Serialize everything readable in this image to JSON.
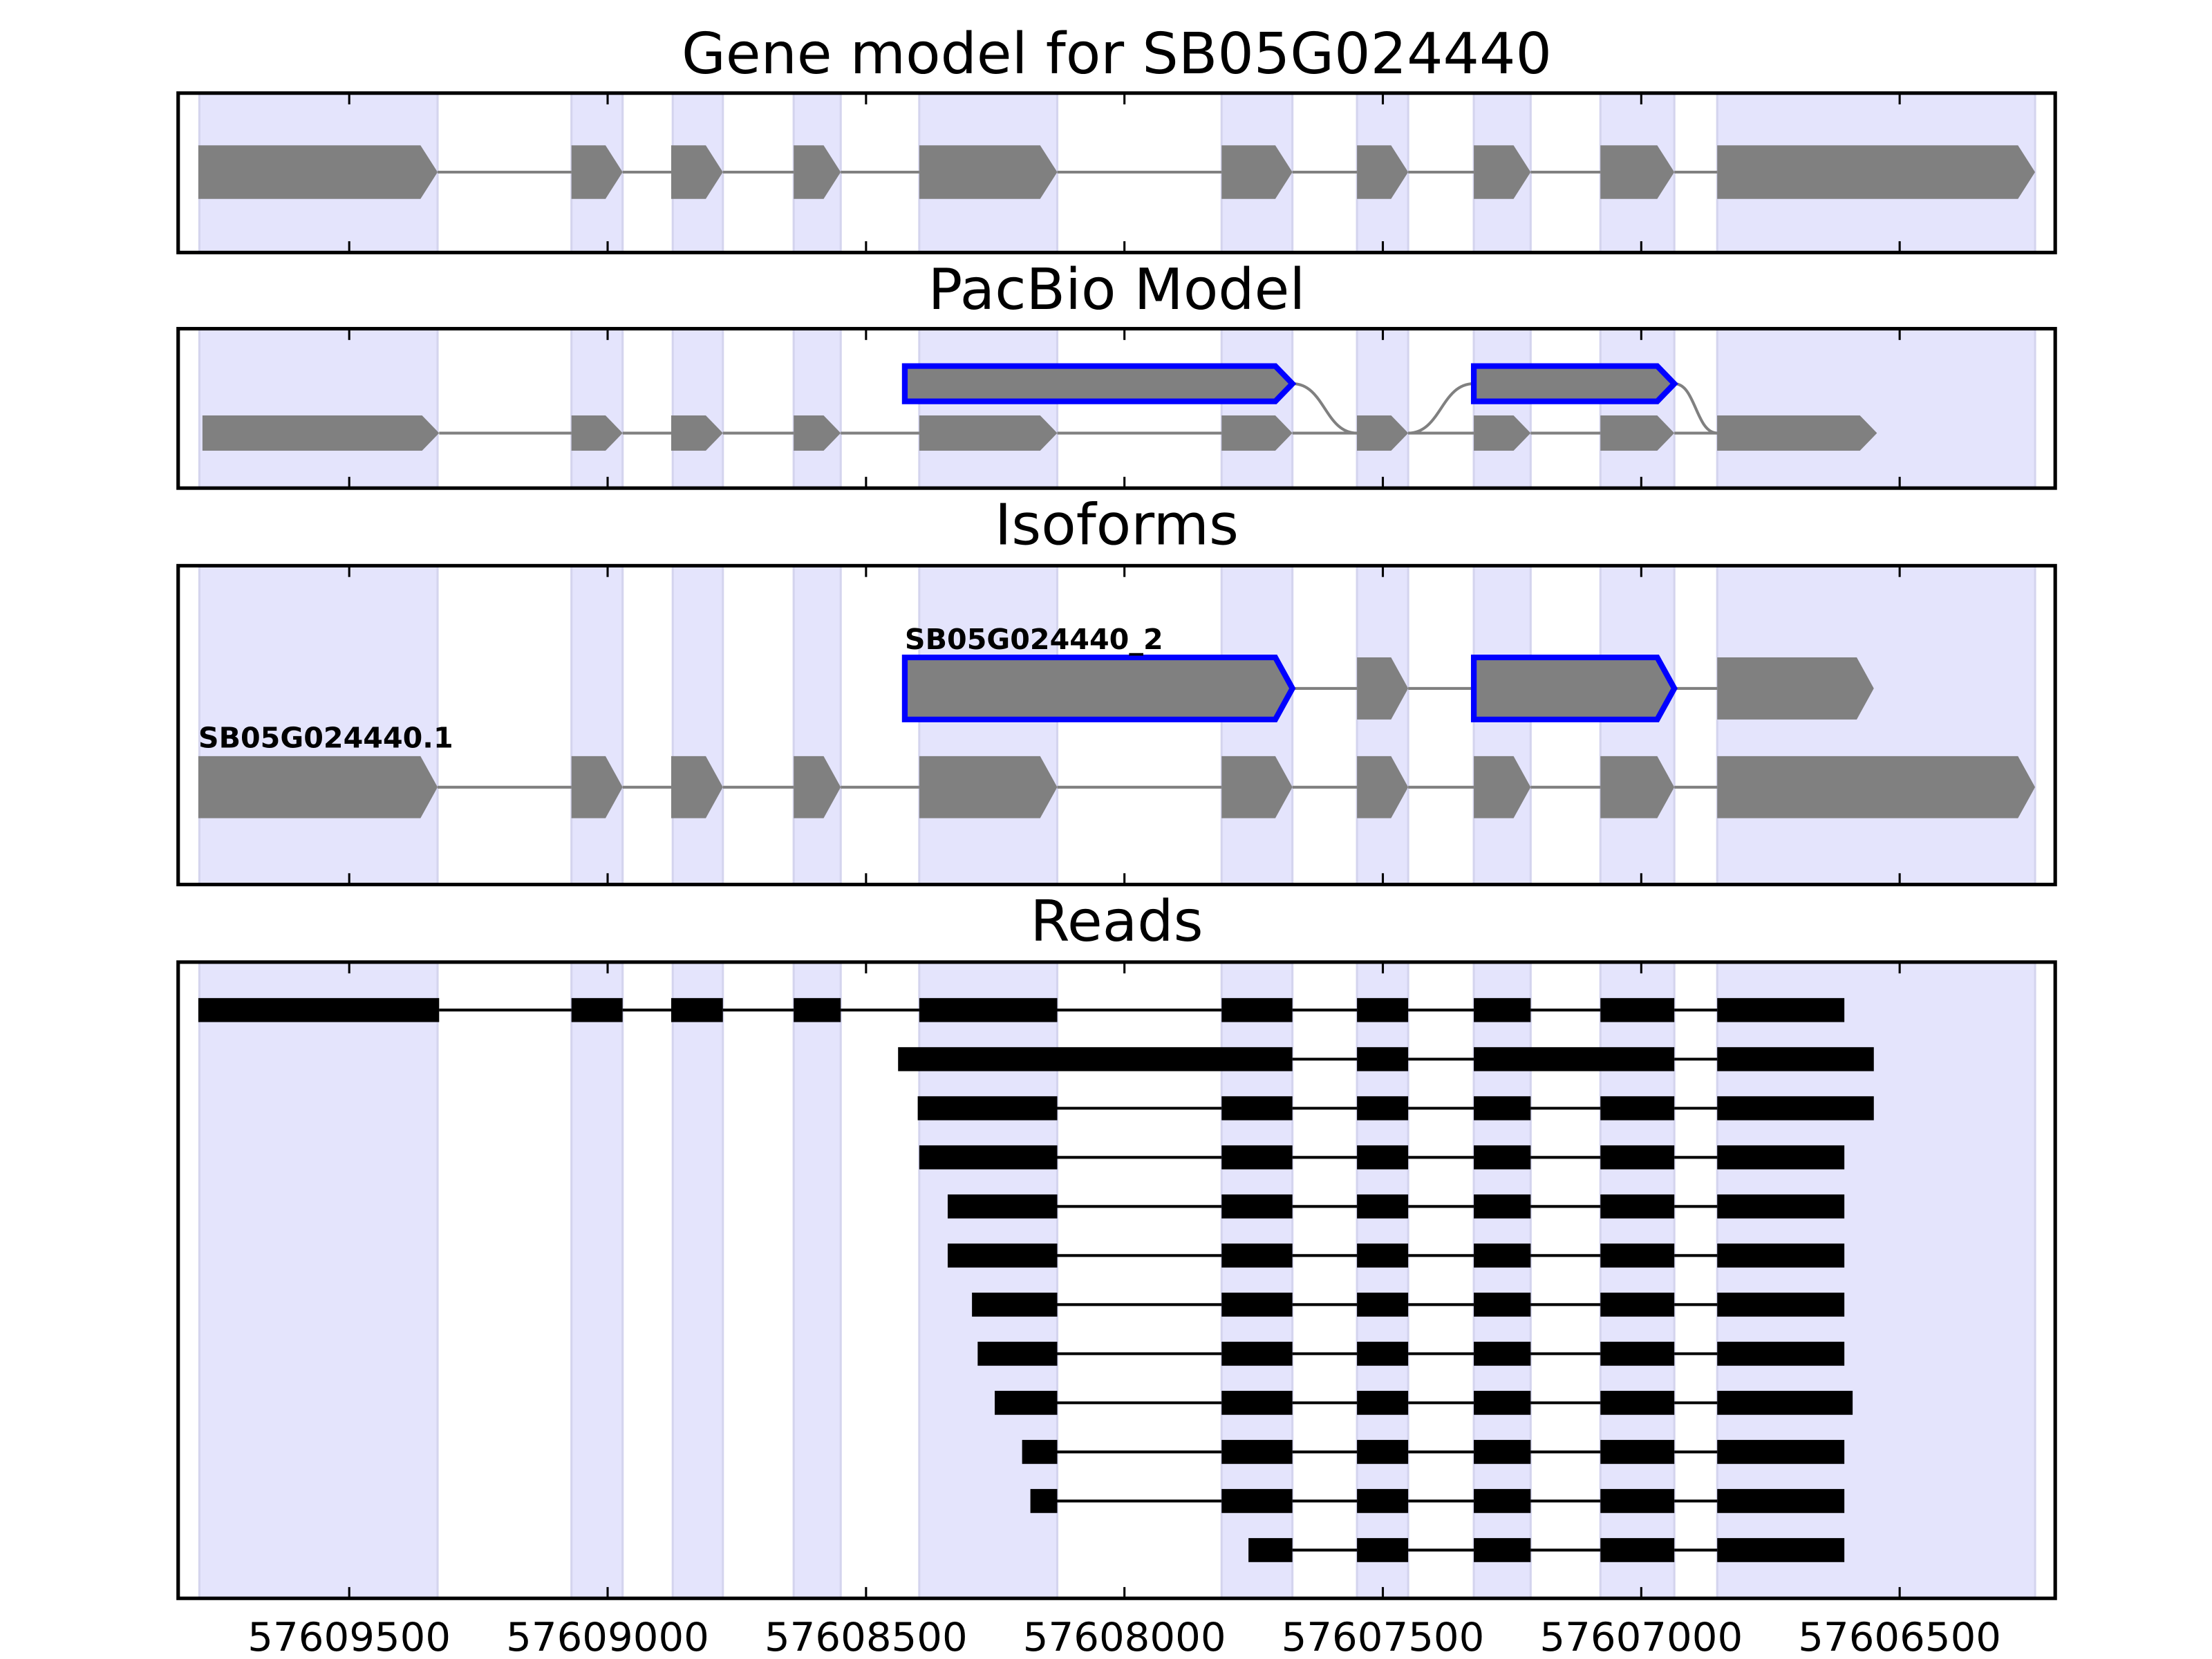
{
  "chart_data": [
    {
      "type": "gene-track",
      "title": "Gene model for SB05G024440",
      "xlim": [
        57609831,
        57606199
      ],
      "regions": [
        [
          57609790,
          57609329
        ],
        [
          57609070,
          57608971
        ],
        [
          57608874,
          57608777
        ],
        [
          57608640,
          57608549
        ],
        [
          57608397,
          57608130
        ],
        [
          57607812,
          57607675
        ],
        [
          57607550,
          57607451
        ],
        [
          57607324,
          57607214
        ],
        [
          57607079,
          57606936
        ],
        [
          57606853,
          57606238
        ]
      ],
      "exon_color": "#808080",
      "edge_color": "#0000ff",
      "tracks": [
        {
          "exons": [
            [
              57609792,
              57609329
            ],
            [
              57609070,
              57608971
            ],
            [
              57608877,
              57608777
            ],
            [
              57608640,
              57608549
            ],
            [
              57608397,
              57608130
            ],
            [
              57607812,
              57607675
            ],
            [
              57607550,
              57607451
            ],
            [
              57607324,
              57607214
            ],
            [
              57607079,
              57606936
            ],
            [
              57606853,
              57606238
            ]
          ]
        }
      ]
    },
    {
      "type": "gene-track",
      "title": "PacBio Model",
      "xlim": [
        57609831,
        57606199
      ],
      "regions": [
        [
          57609790,
          57609329
        ],
        [
          57609070,
          57608971
        ],
        [
          57608874,
          57608777
        ],
        [
          57608640,
          57608549
        ],
        [
          57608397,
          57608130
        ],
        [
          57607812,
          57607675
        ],
        [
          57607550,
          57607451
        ],
        [
          57607324,
          57607214
        ],
        [
          57607079,
          57606936
        ],
        [
          57606853,
          57606238
        ]
      ],
      "exon_color": "#808080",
      "edge_color": "#0000ff",
      "tracks": [
        {
          "exons": [
            [
              57608425,
              57607675
            ],
            [
              57607550,
              57607451
            ],
            [
              57607324,
              57606936
            ],
            [
              57606853,
              57606544
            ]
          ],
          "rows": [
            0,
            1,
            0,
            1
          ],
          "edged": [
            0,
            2
          ]
        },
        {
          "exons": [
            [
              57609784,
              57609326
            ],
            [
              57609070,
              57608971
            ],
            [
              57608877,
              57608777
            ],
            [
              57608640,
              57608549
            ],
            [
              57608397,
              57608130
            ],
            [
              57607812,
              57607675
            ],
            [
              57607550,
              57607451
            ],
            [
              57607324,
              57607214
            ],
            [
              57607079,
              57606936
            ],
            [
              57606853,
              57606544
            ]
          ]
        }
      ]
    },
    {
      "type": "gene-track",
      "title": "Isoforms",
      "xlim": [
        57609831,
        57606199
      ],
      "regions": [
        [
          57609790,
          57609329
        ],
        [
          57609070,
          57608971
        ],
        [
          57608874,
          57608777
        ],
        [
          57608640,
          57608549
        ],
        [
          57608397,
          57608130
        ],
        [
          57607812,
          57607675
        ],
        [
          57607550,
          57607451
        ],
        [
          57607324,
          57607214
        ],
        [
          57607079,
          57606936
        ],
        [
          57606853,
          57606238
        ]
      ],
      "exon_color": "#808080",
      "edge_color": "#0000ff",
      "tracks": [
        {
          "label": "SB05G024440_2",
          "exons": [
            [
              57608425,
              57607675
            ],
            [
              57607550,
              57607451
            ],
            [
              57607324,
              57606936
            ],
            [
              57606853,
              57606550
            ]
          ],
          "edged": [
            0,
            2
          ]
        },
        {
          "label": "SB05G024440.1",
          "exons": [
            [
              57609792,
              57609329
            ],
            [
              57609070,
              57608971
            ],
            [
              57608877,
              57608777
            ],
            [
              57608640,
              57608549
            ],
            [
              57608397,
              57608130
            ],
            [
              57607812,
              57607675
            ],
            [
              57607550,
              57607451
            ],
            [
              57607324,
              57607214
            ],
            [
              57607079,
              57606936
            ],
            [
              57606853,
              57606238
            ]
          ]
        }
      ]
    },
    {
      "type": "reads",
      "title": "Reads",
      "xlim": [
        57609831,
        57606199
      ],
      "xticks": [
        57609500,
        57609000,
        57608500,
        57608000,
        57607500,
        57607000,
        57606500
      ],
      "regions": [
        [
          57609790,
          57609329
        ],
        [
          57609070,
          57608971
        ],
        [
          57608874,
          57608777
        ],
        [
          57608640,
          57608549
        ],
        [
          57608397,
          57608130
        ],
        [
          57607812,
          57607675
        ],
        [
          57607550,
          57607451
        ],
        [
          57607324,
          57607214
        ],
        [
          57607079,
          57606936
        ],
        [
          57606853,
          57606238
        ]
      ],
      "exon_color": "#000000",
      "tracks": [
        {
          "exons": [
            [
              57609792,
              57609326
            ],
            [
              57609070,
              57608971
            ],
            [
              57608877,
              57608777
            ],
            [
              57608640,
              57608549
            ],
            [
              57608397,
              57608130
            ],
            [
              57607812,
              57607675
            ],
            [
              57607550,
              57607451
            ],
            [
              57607324,
              57607214
            ],
            [
              57607079,
              57606936
            ],
            [
              57606853,
              57606607
            ]
          ]
        },
        {
          "exons": [
            [
              57608438,
              57607675
            ],
            [
              57607550,
              57607451
            ],
            [
              57607324,
              57606936
            ],
            [
              57606853,
              57606550
            ]
          ]
        },
        {
          "exons": [
            [
              57608400,
              57608130
            ],
            [
              57607812,
              57607675
            ],
            [
              57607550,
              57607451
            ],
            [
              57607324,
              57607214
            ],
            [
              57607079,
              57606936
            ],
            [
              57606853,
              57606550
            ]
          ]
        },
        {
          "exons": [
            [
              57608397,
              57608130
            ],
            [
              57607812,
              57607675
            ],
            [
              57607550,
              57607451
            ],
            [
              57607324,
              57607214
            ],
            [
              57607079,
              57606936
            ],
            [
              57606853,
              57606607
            ]
          ]
        },
        {
          "exons": [
            [
              57608342,
              57608130
            ],
            [
              57607812,
              57607675
            ],
            [
              57607550,
              57607451
            ],
            [
              57607324,
              57607214
            ],
            [
              57607079,
              57606936
            ],
            [
              57606853,
              57606607
            ]
          ]
        },
        {
          "exons": [
            [
              57608342,
              57608130
            ],
            [
              57607812,
              57607675
            ],
            [
              57607550,
              57607451
            ],
            [
              57607324,
              57607214
            ],
            [
              57607079,
              57606936
            ],
            [
              57606853,
              57606607
            ]
          ]
        },
        {
          "exons": [
            [
              57608295,
              57608130
            ],
            [
              57607812,
              57607675
            ],
            [
              57607550,
              57607451
            ],
            [
              57607324,
              57607214
            ],
            [
              57607079,
              57606936
            ],
            [
              57606853,
              57606607
            ]
          ]
        },
        {
          "exons": [
            [
              57608284,
              57608130
            ],
            [
              57607812,
              57607675
            ],
            [
              57607550,
              57607451
            ],
            [
              57607324,
              57607214
            ],
            [
              57607079,
              57606936
            ],
            [
              57606853,
              57606607
            ]
          ]
        },
        {
          "exons": [
            [
              57608251,
              57608130
            ],
            [
              57607812,
              57607675
            ],
            [
              57607550,
              57607451
            ],
            [
              57607324,
              57607214
            ],
            [
              57607079,
              57606936
            ],
            [
              57606853,
              57606591
            ]
          ]
        },
        {
          "exons": [
            [
              57608198,
              57608130
            ],
            [
              57607812,
              57607675
            ],
            [
              57607550,
              57607451
            ],
            [
              57607324,
              57607214
            ],
            [
              57607079,
              57606936
            ],
            [
              57606853,
              57606607
            ]
          ]
        },
        {
          "exons": [
            [
              57608182,
              57608130
            ],
            [
              57607812,
              57607675
            ],
            [
              57607550,
              57607451
            ],
            [
              57607324,
              57607214
            ],
            [
              57607079,
              57606936
            ],
            [
              57606853,
              57606607
            ]
          ]
        },
        {
          "exons": [
            [
              57607760,
              57607675
            ],
            [
              57607550,
              57607451
            ],
            [
              57607324,
              57607214
            ],
            [
              57607079,
              57606936
            ],
            [
              57606853,
              57606607
            ]
          ]
        }
      ]
    }
  ]
}
